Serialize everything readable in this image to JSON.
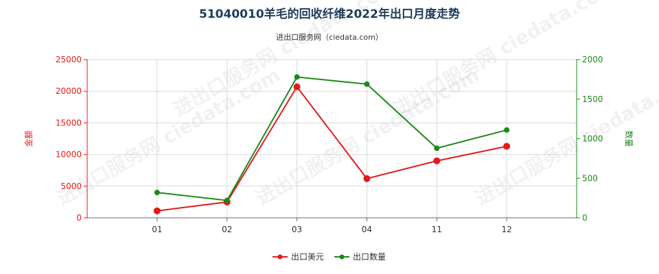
{
  "title": "51040010羊毛的回收纤维2022年出口月度走势",
  "subtitle": "进出口服务网（ciedata.com）",
  "watermark": "进出口服务网 ciedata.com",
  "colors": {
    "amount": "#e31a1c",
    "quantity": "#1a8a1a",
    "grid": "#d9d9d9",
    "axis": "#666666"
  },
  "chart_data": {
    "type": "line",
    "categories": [
      "01",
      "02",
      "03",
      "04",
      "11",
      "12"
    ],
    "y_left": {
      "label": "金额",
      "ylim": [
        0,
        25000
      ],
      "ticks": [
        0,
        5000,
        10000,
        15000,
        20000,
        25000
      ]
    },
    "y_right": {
      "label": "数量",
      "ylim": [
        0,
        2000
      ],
      "ticks": [
        0,
        500,
        1000,
        1500,
        2000
      ]
    },
    "series": [
      {
        "name": "出口美元",
        "axis": "left",
        "values": [
          1100,
          2500,
          20700,
          6200,
          9000,
          11300
        ]
      },
      {
        "name": "出口数量",
        "axis": "right",
        "values": [
          320,
          220,
          1780,
          1690,
          880,
          1110
        ]
      }
    ],
    "grid": true,
    "legend": "bottom-center"
  }
}
